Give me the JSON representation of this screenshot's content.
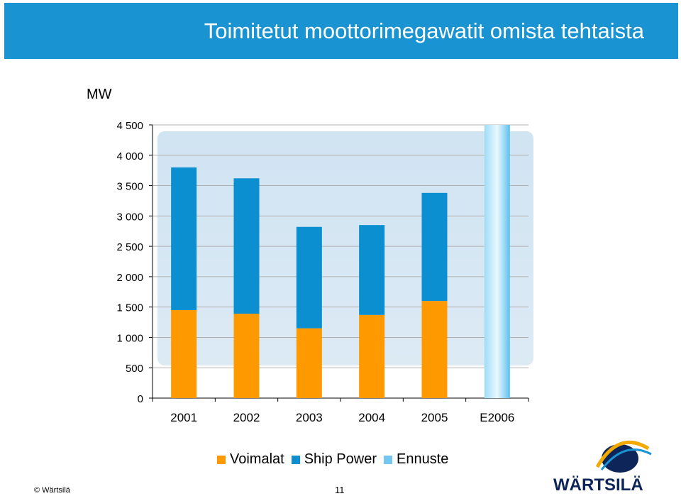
{
  "title": "Toimitetut moottorimegawatit omista tehtaista",
  "unit_label": "MW",
  "chart_data": {
    "type": "bar",
    "stacked": true,
    "categories": [
      "2001",
      "2002",
      "2003",
      "2004",
      "2005",
      "E2006"
    ],
    "series": [
      {
        "name": "Voimalat",
        "color": "#ff9900",
        "values": [
          1450,
          1390,
          1150,
          1370,
          1600,
          0
        ]
      },
      {
        "name": "Ship Power",
        "color": "#0b8fd0",
        "values": [
          2350,
          2230,
          1670,
          1480,
          1780,
          0
        ]
      },
      {
        "name": "Ennuste",
        "color": "#73c8f2",
        "values": [
          0,
          0,
          0,
          0,
          0,
          4500
        ]
      }
    ],
    "yticks": [
      "0",
      "500",
      "1 000",
      "1 500",
      "2 000",
      "2 500",
      "3 000",
      "3 500",
      "4 000",
      "4 500"
    ],
    "ylim": [
      0,
      4500
    ],
    "legend_position": "bottom"
  },
  "legend": [
    "Voimalat",
    "Ship Power",
    "Ennuste"
  ],
  "footer": {
    "copyright": "© Wärtsilä",
    "page_number": "11"
  },
  "logo_text": "WÄRTSILÄ"
}
